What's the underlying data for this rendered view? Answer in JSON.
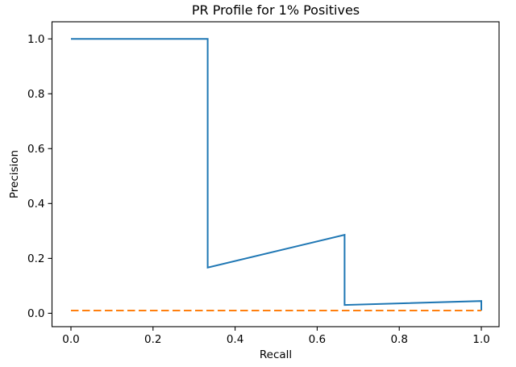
{
  "figure": {
    "title": "PR Profile for 1% Positives",
    "x_axis": {
      "label": "Recall",
      "tick_labels": [
        "0.0",
        "0.2",
        "0.4",
        "0.6",
        "0.8",
        "1.0"
      ]
    },
    "y_axis": {
      "label": "Precision",
      "tick_labels": [
        "0.0",
        "0.2",
        "0.4",
        "0.6",
        "0.8",
        "1.0"
      ]
    }
  },
  "chart_data": {
    "type": "line",
    "title": "PR Profile for 1% Positives",
    "xlabel": "Recall",
    "ylabel": "Precision",
    "xlim": [
      -0.05,
      1.05
    ],
    "ylim": [
      -0.05,
      1.06
    ],
    "grid": false,
    "legend": "none",
    "x_ticks": [
      0.0,
      0.2,
      0.4,
      0.6,
      0.8,
      1.0
    ],
    "y_ticks": [
      0.0,
      0.2,
      0.4,
      0.6,
      0.8,
      1.0
    ],
    "series": [
      {
        "name": "pr_curve",
        "color": "#1f77b4",
        "line_style": "solid",
        "line_width": 2,
        "points": [
          [
            0.0,
            1.0
          ],
          [
            0.3333,
            1.0
          ],
          [
            0.3333,
            0.1667
          ],
          [
            0.6667,
            0.2857
          ],
          [
            0.6667,
            0.0303
          ],
          [
            1.0,
            0.0448
          ],
          [
            1.0,
            0.01
          ]
        ]
      },
      {
        "name": "random_baseline",
        "color": "#ff7f0e",
        "line_style": "dashed",
        "line_width": 2,
        "points": [
          [
            0.0,
            0.01
          ],
          [
            1.0,
            0.01
          ]
        ]
      }
    ]
  }
}
